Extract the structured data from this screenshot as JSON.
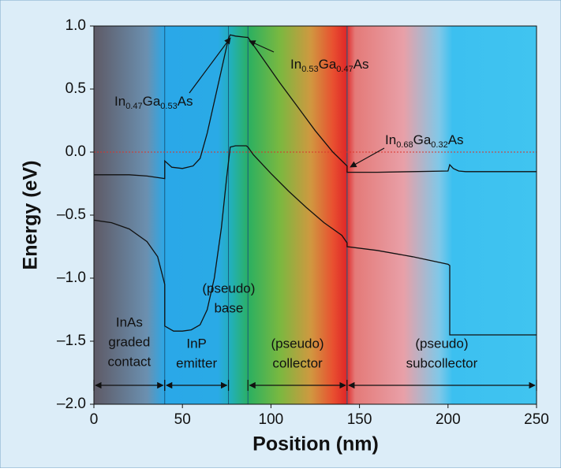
{
  "chart_data": {
    "type": "line",
    "x_label": "Position (nm)",
    "y_label": "Energy (eV)",
    "xlim": [
      0,
      250
    ],
    "ylim": [
      -2.0,
      1.0
    ],
    "xticks": [
      0,
      50,
      100,
      150,
      200,
      250
    ],
    "yticks": [
      {
        "value": 1.0,
        "label": "1.0"
      },
      {
        "value": 0.5,
        "label": "0.5"
      },
      {
        "value": 0.0,
        "label": "0.0"
      },
      {
        "value": -0.5,
        "label": "–0.5"
      },
      {
        "value": -1.0,
        "label": "–1.0"
      },
      {
        "value": -1.5,
        "label": "–1.5"
      },
      {
        "value": -2.0,
        "label": "–2.0"
      }
    ],
    "grid": false,
    "reference_line": {
      "y": 0.0,
      "color": "#d9342b"
    },
    "series": [
      {
        "color": "#111111",
        "x": [
          0,
          10,
          20,
          30,
          40,
          40,
          44,
          50,
          56,
          60,
          64,
          68,
          72,
          76,
          77,
          80,
          86,
          87,
          95,
          105,
          115,
          125,
          135,
          143,
          143,
          160,
          180,
          200,
          201,
          203,
          206,
          210,
          230,
          250
        ],
        "values": [
          -0.18,
          -0.18,
          -0.18,
          -0.19,
          -0.21,
          -0.07,
          -0.12,
          -0.13,
          -0.11,
          -0.05,
          0.15,
          0.4,
          0.65,
          0.9,
          0.93,
          0.92,
          0.91,
          0.91,
          0.75,
          0.55,
          0.36,
          0.17,
          0.0,
          -0.11,
          -0.16,
          -0.16,
          -0.155,
          -0.15,
          -0.1,
          -0.13,
          -0.15,
          -0.155,
          -0.155,
          -0.155
        ]
      },
      {
        "color": "#111111",
        "x": [
          0,
          10,
          20,
          30,
          36,
          40,
          40,
          45,
          50,
          55,
          60,
          64,
          68,
          72,
          75,
          77,
          80,
          86,
          87,
          90,
          100,
          110,
          120,
          130,
          140,
          143,
          143,
          160,
          180,
          200,
          201,
          201,
          220,
          250
        ],
        "values": [
          -0.54,
          -0.56,
          -0.61,
          -0.71,
          -0.83,
          -1.05,
          -1.38,
          -1.42,
          -1.42,
          -1.41,
          -1.37,
          -1.25,
          -1.0,
          -0.6,
          -0.2,
          0.04,
          0.05,
          0.05,
          0.04,
          -0.02,
          -0.17,
          -0.31,
          -0.44,
          -0.56,
          -0.66,
          -0.72,
          -0.75,
          -0.78,
          -0.83,
          -0.89,
          -0.9,
          -1.45,
          -1.45,
          -1.45
        ]
      }
    ],
    "regions": [
      {
        "x": [
          0,
          40
        ],
        "lines": [
          "InAs",
          "graded",
          "contact"
        ]
      },
      {
        "x": [
          40,
          76
        ],
        "lines": [
          "InP",
          "emitter"
        ]
      },
      {
        "x": [
          76,
          87
        ],
        "lines": [
          "(pseudo)",
          "base"
        ]
      },
      {
        "x": [
          87,
          143
        ],
        "lines": [
          "(pseudo)",
          "collector"
        ]
      },
      {
        "x": [
          143,
          250
        ],
        "lines": [
          "(pseudo)",
          "subcollector"
        ]
      }
    ],
    "annotations": [
      {
        "parts": [
          "In",
          "0.47",
          "Ga",
          "0.53",
          "As"
        ]
      },
      {
        "parts": [
          "In",
          "0.53",
          "Ga",
          "0.47",
          "As"
        ]
      },
      {
        "parts": [
          "In",
          "0.68",
          "Ga",
          "0.32",
          "As"
        ]
      }
    ]
  }
}
